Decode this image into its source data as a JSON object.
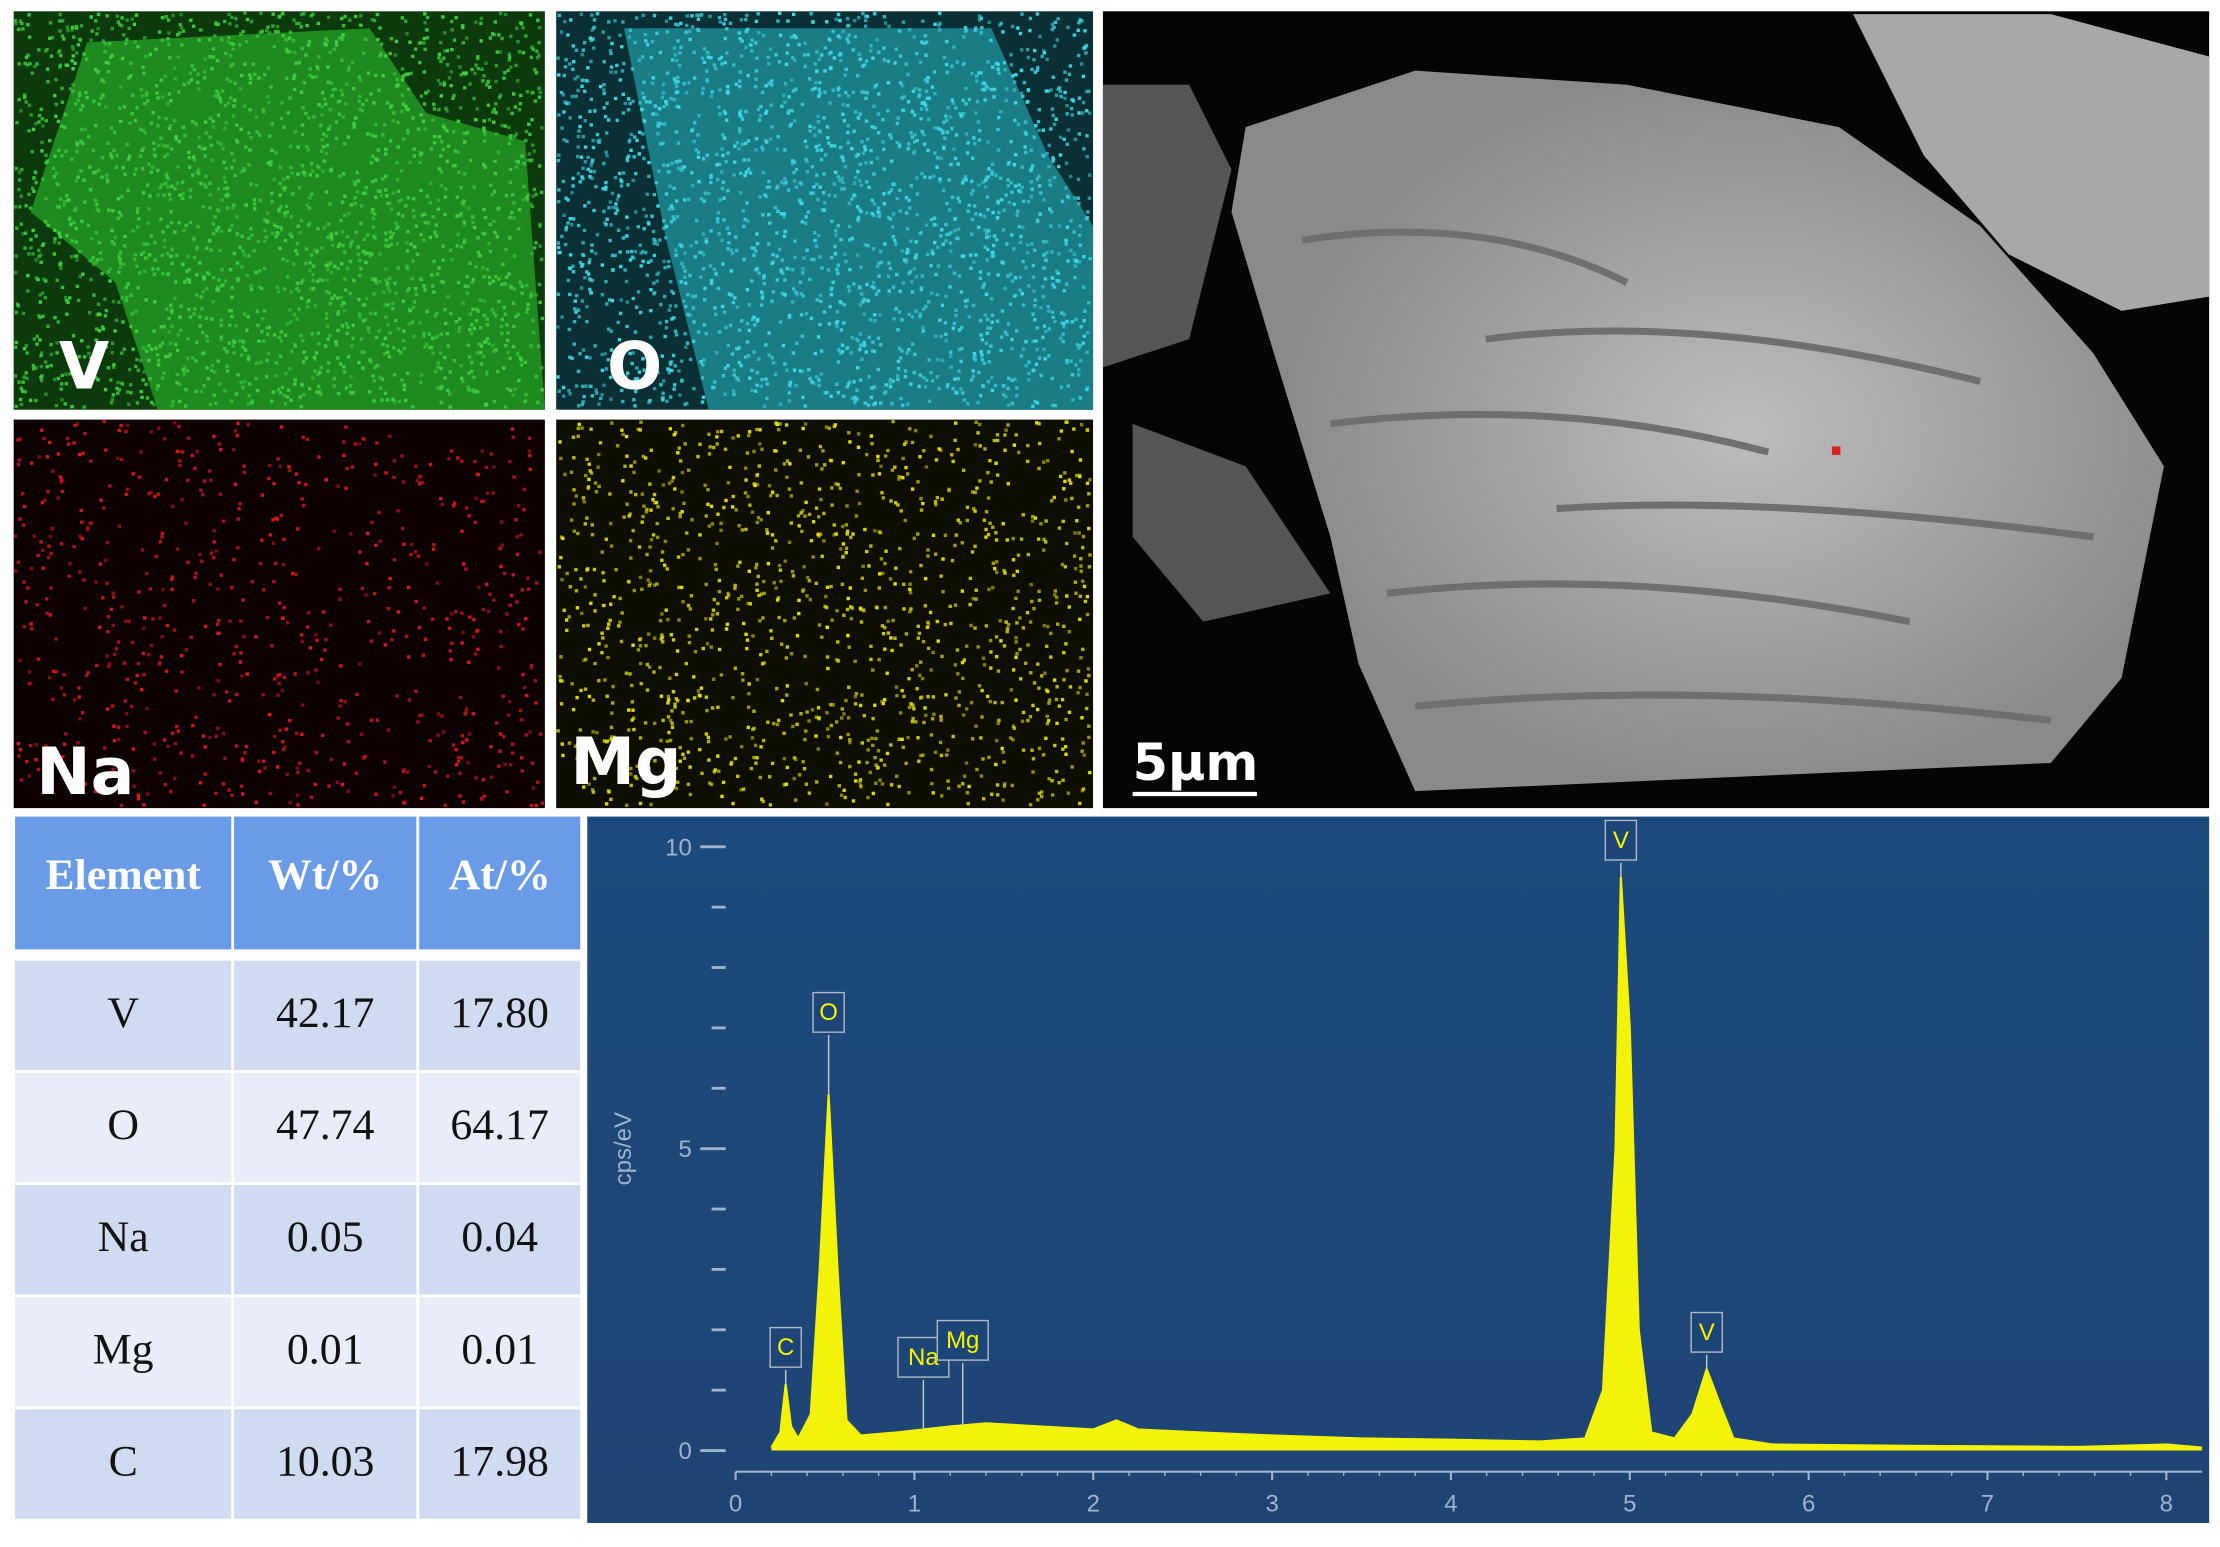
{
  "maps": [
    {
      "label": "V"
    },
    {
      "label": "O"
    },
    {
      "label": "Na"
    },
    {
      "label": "Mg"
    }
  ],
  "sem": {
    "scale_bar": "5µm"
  },
  "table": {
    "header": [
      "Element",
      "Wt/%",
      "At/%"
    ],
    "rows": [
      [
        "V",
        "42.17",
        "17.80"
      ],
      [
        "O",
        "47.74",
        "64.17"
      ],
      [
        "Na",
        "0.05",
        "0.04"
      ],
      [
        "Mg",
        "0.01",
        "0.01"
      ],
      [
        "C",
        "10.03",
        "17.98"
      ]
    ]
  },
  "chart_data": {
    "type": "area",
    "y_label": "cps/eV",
    "color": "#f2f20a",
    "x": [
      0.2,
      0.25,
      0.28,
      0.31,
      0.35,
      0.42,
      0.47,
      0.52,
      0.57,
      0.62,
      0.7,
      0.9,
      1.2,
      1.4,
      1.7,
      2.0,
      2.13,
      2.25,
      2.6,
      3.0,
      3.5,
      4.0,
      4.5,
      4.75,
      4.85,
      4.92,
      4.95,
      5.0,
      5.05,
      5.12,
      5.25,
      5.35,
      5.43,
      5.5,
      5.58,
      5.8,
      6.5,
      7.5,
      8.0,
      8.2
    ],
    "y": [
      0.05,
      0.3,
      1.1,
      0.4,
      0.2,
      0.6,
      3,
      5.9,
      3,
      0.5,
      0.25,
      0.3,
      0.4,
      0.45,
      0.4,
      0.35,
      0.5,
      0.35,
      0.3,
      0.25,
      0.2,
      0.18,
      0.15,
      0.2,
      1,
      5,
      9.5,
      7,
      2,
      0.3,
      0.2,
      0.6,
      1.35,
      0.8,
      0.2,
      0.1,
      0.08,
      0.06,
      0.1,
      0.05
    ],
    "xlim": [
      0,
      8.2
    ],
    "ylim": [
      -1.2,
      10.5
    ],
    "xticks": [
      0,
      1,
      2,
      3,
      4,
      5,
      6,
      7,
      8
    ],
    "yticks": [
      0,
      5,
      10
    ],
    "annotations": [
      {
        "text": "C",
        "x": 0.28
      },
      {
        "text": "O",
        "x": 0.52
      },
      {
        "text": "Na",
        "x": 1.05
      },
      {
        "text": "Mg",
        "x": 1.27
      },
      {
        "text": "V",
        "x": 4.95
      },
      {
        "text": "V",
        "x": 5.43
      }
    ]
  }
}
